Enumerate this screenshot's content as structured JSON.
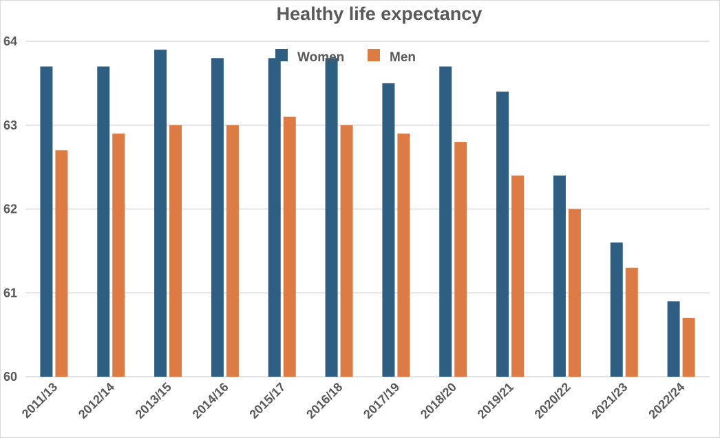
{
  "chart_data": {
    "type": "bar",
    "title": "Healthy life expectancy",
    "xlabel": "",
    "ylabel": "",
    "categories": [
      "2011/13",
      "2012/14",
      "2013/15",
      "2014/16",
      "2015/17",
      "2016/18",
      "2017/19",
      "2018/20",
      "2019/21",
      "2020/22",
      "2021/23",
      "2022/24"
    ],
    "series": [
      {
        "name": "Women",
        "color": "#2e5f82",
        "values": [
          63.7,
          63.7,
          63.9,
          63.8,
          63.8,
          63.8,
          63.5,
          63.7,
          63.4,
          62.4,
          61.6,
          60.9
        ]
      },
      {
        "name": "Men",
        "color": "#dc7c44",
        "values": [
          62.7,
          62.9,
          63.0,
          63.0,
          63.1,
          63.0,
          62.9,
          62.8,
          62.4,
          62.0,
          61.3,
          60.7
        ]
      }
    ],
    "ylim": [
      60,
      64
    ],
    "yticks": [
      60,
      61,
      62,
      63,
      64
    ],
    "grid": true,
    "legend_position": "top-center"
  }
}
